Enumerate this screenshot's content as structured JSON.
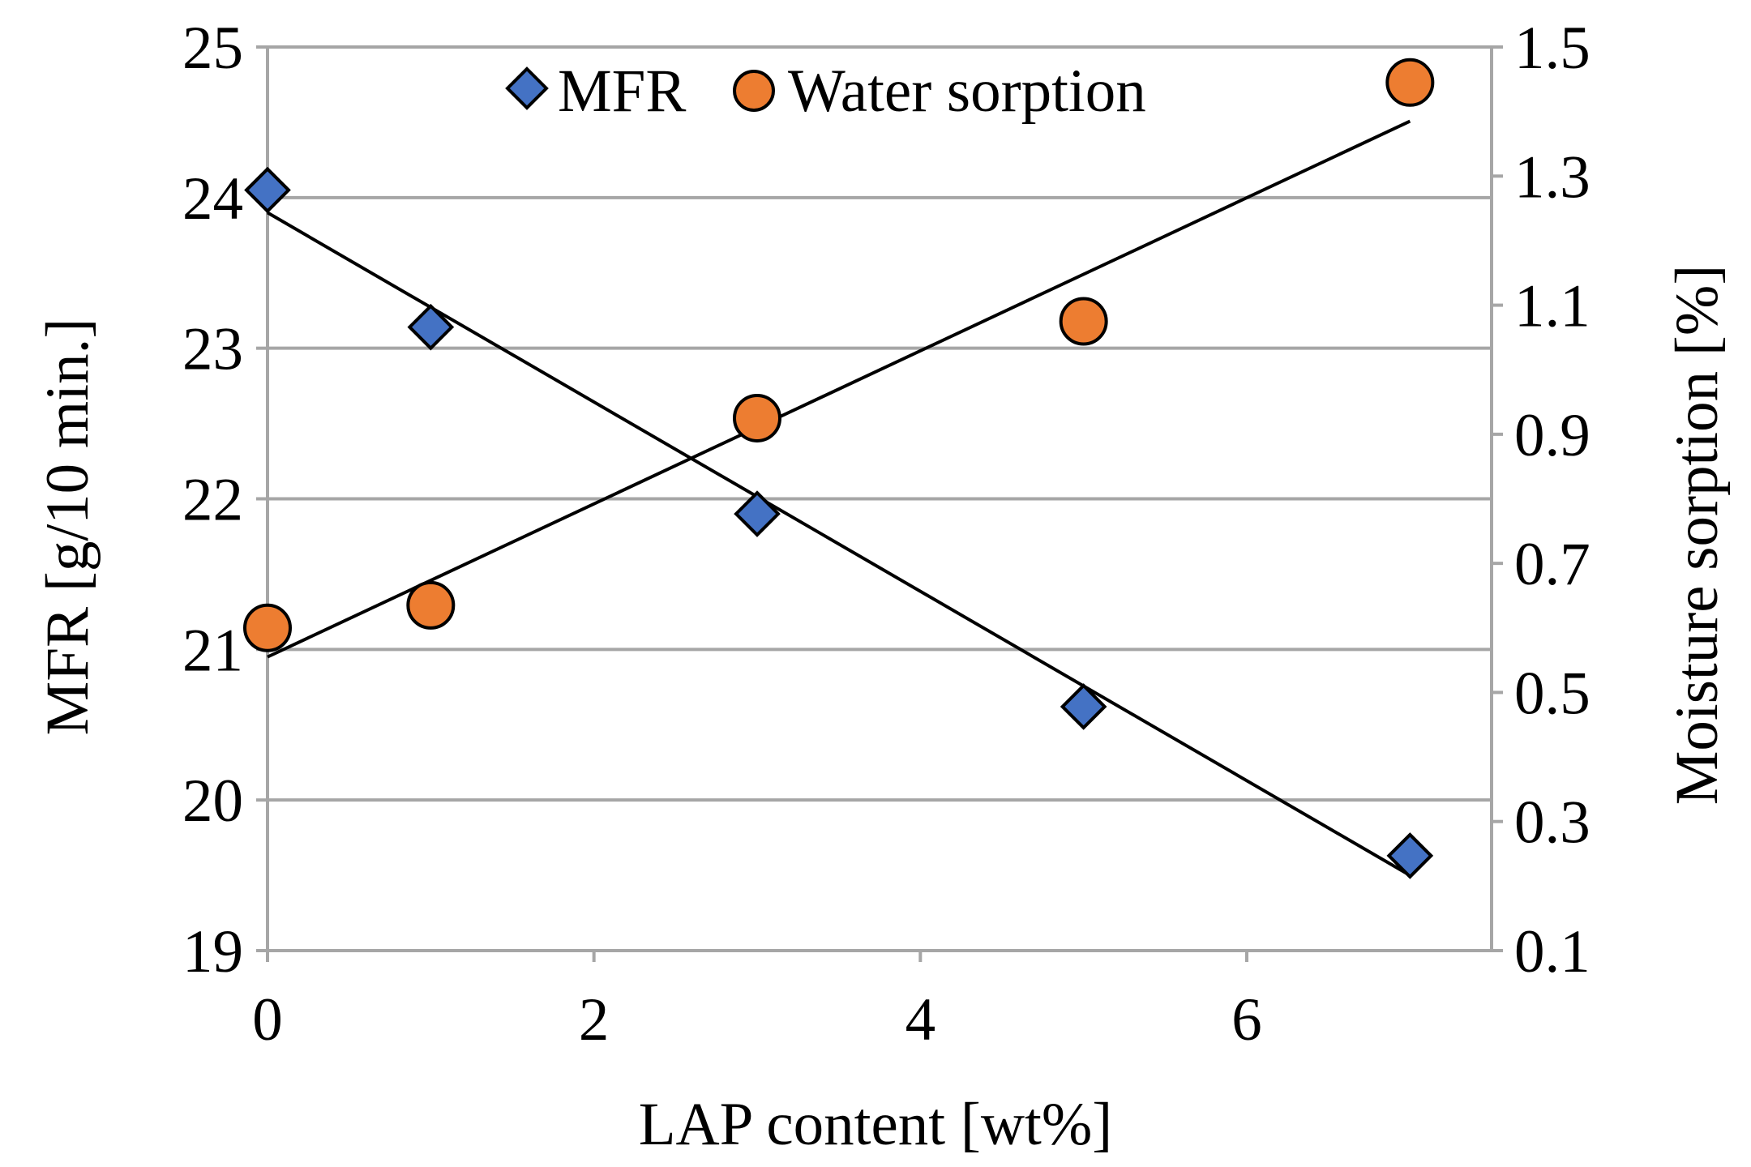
{
  "chart_data": {
    "type": "scatter",
    "title": "",
    "xlabel": "LAP content [wt%]",
    "ylabel_left": "MFR [g/10 min.]",
    "ylabel_right": "Moisture sorption [%]",
    "xlim": [
      0,
      7.5
    ],
    "ylim_left": [
      19,
      25
    ],
    "ylim_right": [
      0.1,
      1.5
    ],
    "x_ticks": [
      "0",
      "2",
      "4",
      "6"
    ],
    "x_tick_values": [
      0,
      2,
      4,
      6
    ],
    "y_left_ticks": [
      "19",
      "20",
      "21",
      "22",
      "23",
      "24",
      "25"
    ],
    "y_left_tick_values": [
      19,
      20,
      21,
      22,
      23,
      24,
      25
    ],
    "y_right_ticks": [
      "0.1",
      "0.3",
      "0.5",
      "0.7",
      "0.9",
      "1.1",
      "1.3",
      "1.5"
    ],
    "y_right_tick_values": [
      0.1,
      0.3,
      0.5,
      0.7,
      0.9,
      1.1,
      1.3,
      1.5
    ],
    "grid": true,
    "legend_position": "top-center",
    "series": [
      {
        "name": "MFR",
        "axis": "left",
        "marker": "diamond",
        "color": "#4472C4",
        "x": [
          0,
          1,
          3,
          5,
          7
        ],
        "y": [
          24.05,
          23.14,
          21.9,
          20.62,
          19.63
        ],
        "trendline": {
          "x": [
            0,
            7
          ],
          "y": [
            23.9,
            19.5
          ]
        }
      },
      {
        "name": "Water sorption",
        "axis": "right",
        "marker": "circle",
        "color": "#ED7D31",
        "x": [
          0,
          1,
          3,
          5,
          7
        ],
        "y": [
          0.6,
          0.635,
          0.925,
          1.075,
          1.445
        ],
        "trendline": {
          "x": [
            0,
            7
          ],
          "y": [
            0.555,
            1.385
          ]
        }
      }
    ]
  }
}
